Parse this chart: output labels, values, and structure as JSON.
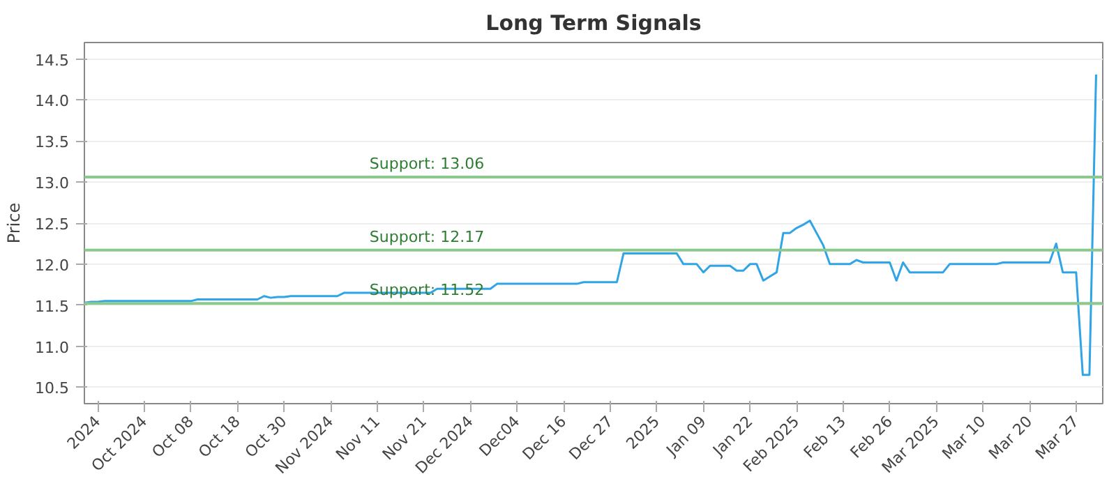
{
  "chart_data": {
    "type": "line",
    "title": "Long Term Signals",
    "ylabel": "Price",
    "categories": [
      null,
      null,
      "2024",
      null,
      null,
      null,
      null,
      null,
      null,
      "Oct 2024",
      null,
      null,
      null,
      null,
      null,
      null,
      "Oct 08",
      null,
      null,
      null,
      null,
      null,
      null,
      "Oct 18",
      null,
      null,
      null,
      null,
      null,
      null,
      "Oct 30",
      null,
      null,
      null,
      null,
      null,
      null,
      "Nov 2024",
      null,
      null,
      null,
      null,
      null,
      null,
      "Nov 11",
      null,
      null,
      null,
      null,
      null,
      null,
      "Nov 21",
      null,
      null,
      null,
      null,
      null,
      null,
      "Dec 2024",
      null,
      null,
      null,
      null,
      null,
      null,
      "Dec04",
      null,
      null,
      null,
      null,
      null,
      null,
      "Dec 16",
      null,
      null,
      null,
      null,
      null,
      null,
      "Dec 27",
      null,
      null,
      null,
      null,
      null,
      null,
      "2025",
      null,
      null,
      null,
      null,
      null,
      null,
      "Jan 09",
      null,
      null,
      null,
      null,
      null,
      null,
      "Jan 22",
      null,
      null,
      null,
      null,
      null,
      null,
      "Feb 2025",
      null,
      null,
      null,
      null,
      null,
      null,
      "Feb 13",
      null,
      null,
      null,
      null,
      null,
      null,
      "Feb 26",
      null,
      null,
      null,
      null,
      null,
      null,
      "Mar 2025",
      null,
      null,
      null,
      null,
      null,
      null,
      "Mar 10",
      null,
      null,
      null,
      null,
      null,
      null,
      "Mar 20",
      null,
      null,
      null,
      null,
      null,
      null,
      "Mar 27",
      null,
      null,
      null
    ],
    "series": [
      {
        "color": "#2fa4e7",
        "values": [
          11.53,
          11.54,
          11.54,
          11.55,
          11.55,
          11.55,
          11.55,
          11.55,
          11.55,
          11.55,
          11.55,
          11.55,
          11.55,
          11.55,
          11.55,
          11.55,
          11.55,
          11.57,
          11.57,
          11.57,
          11.57,
          11.57,
          11.57,
          11.57,
          11.57,
          11.57,
          11.57,
          11.61,
          11.59,
          11.6,
          11.6,
          11.61,
          11.61,
          11.61,
          11.61,
          11.61,
          11.61,
          11.61,
          11.61,
          11.65,
          11.65,
          11.65,
          11.65,
          11.65,
          11.65,
          11.65,
          11.65,
          11.65,
          11.65,
          11.65,
          11.65,
          11.65,
          11.65,
          11.7,
          11.7,
          11.7,
          11.7,
          11.7,
          11.7,
          11.7,
          11.7,
          11.7,
          11.76,
          11.76,
          11.76,
          11.76,
          11.76,
          11.76,
          11.76,
          11.76,
          11.76,
          11.76,
          11.76,
          11.76,
          11.76,
          11.78,
          11.78,
          11.78,
          11.78,
          11.78,
          11.78,
          12.13,
          12.13,
          12.13,
          12.13,
          12.13,
          12.13,
          12.13,
          12.13,
          12.13,
          12.0,
          12.0,
          12.0,
          11.9,
          11.98,
          11.98,
          11.98,
          11.98,
          11.92,
          11.92,
          12.0,
          12.0,
          11.8,
          11.85,
          11.9,
          12.38,
          12.38,
          12.44,
          12.48,
          12.53,
          12.38,
          12.23,
          12.0,
          12.0,
          12.0,
          12.0,
          12.05,
          12.02,
          12.02,
          12.02,
          12.02,
          12.02,
          11.8,
          12.02,
          11.9,
          11.9,
          11.9,
          11.9,
          11.9,
          11.9,
          12.0,
          12.0,
          12.0,
          12.0,
          12.0,
          12.0,
          12.0,
          12.0,
          12.02,
          12.02,
          12.02,
          12.02,
          12.02,
          12.02,
          12.02,
          12.02,
          12.25,
          11.9,
          11.9,
          11.9,
          10.65,
          10.65,
          14.31
        ]
      }
    ],
    "ylim": [
      10.3,
      14.7
    ],
    "yticks": [
      10.5,
      {
        "value": 11.0,
        "label": "11.0"
      },
      11.5,
      {
        "value": 12.0,
        "label": "12.0"
      },
      12.5,
      {
        "value": 13.0,
        "label": "13.0"
      },
      13.5,
      {
        "value": 14.0,
        "label": "14.0"
      },
      14.5
    ],
    "ref_lines": [
      {
        "axis": "y",
        "value": 13.06,
        "label": "Support: 13.06",
        "color": "#8cc98c"
      },
      {
        "axis": "y",
        "value": 12.17,
        "label": "Support: 12.17",
        "color": "#8cc98c"
      },
      {
        "axis": "y",
        "value": 11.52,
        "label": "Support: 11.52",
        "color": "#8cc98c"
      }
    ],
    "grid": "y"
  }
}
